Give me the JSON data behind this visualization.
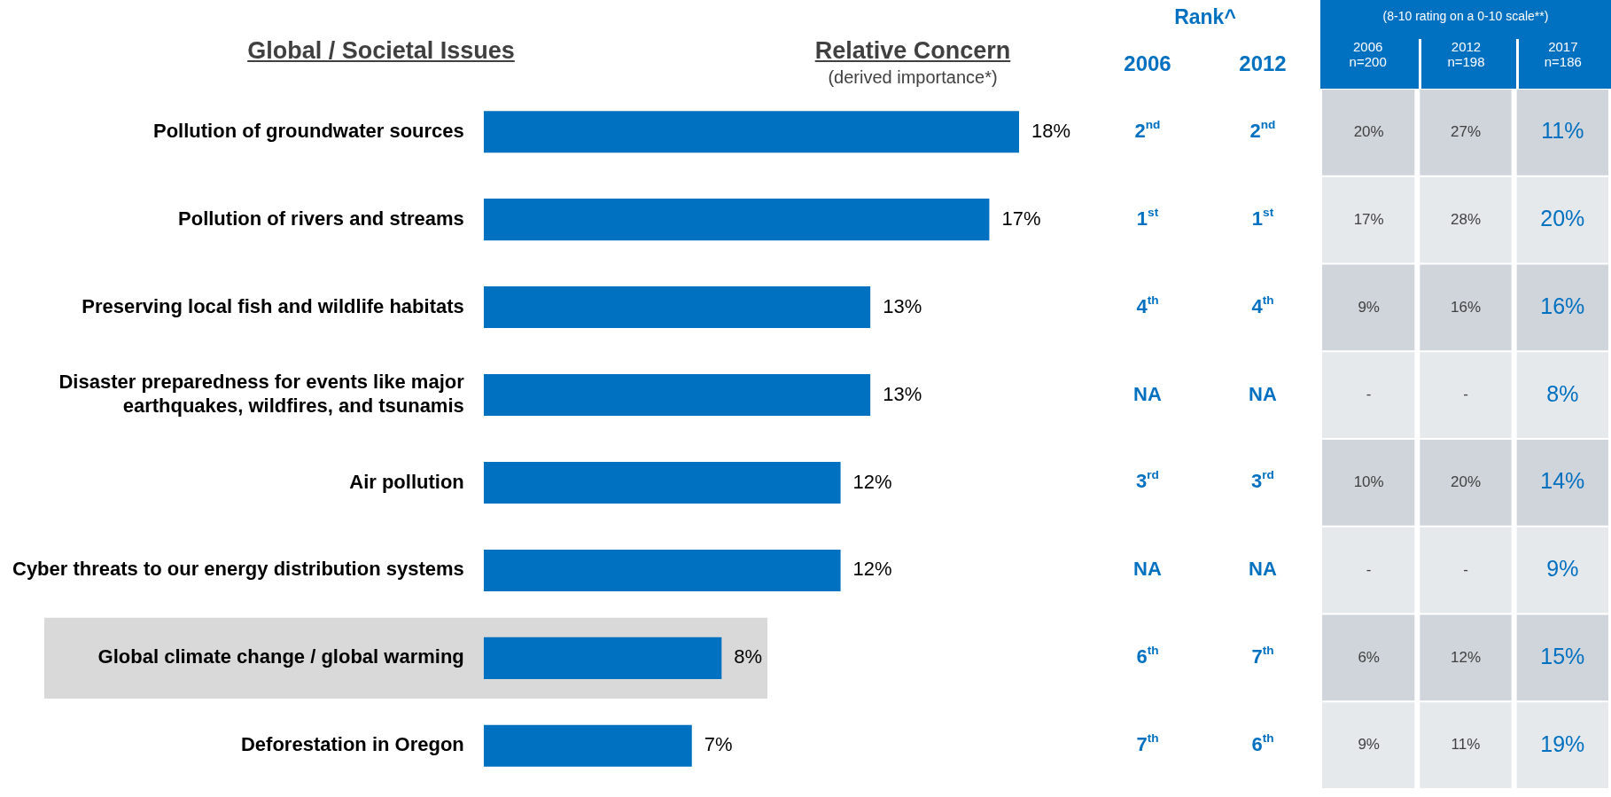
{
  "chart_data": [
    {
      "type": "bar",
      "orientation": "horizontal",
      "title": "Relative Concern",
      "subtitle": "(derived importance*)",
      "ylabel": "Global / Societal Issues",
      "categories": [
        "Pollution of groundwater sources",
        "Pollution of rivers and streams",
        "Preserving local fish and wildlife habitats",
        "Disaster preparedness for events like major earthquakes, wildfires, and tsunamis",
        "Air pollution",
        "Cyber threats to our energy distribution systems",
        "Global climate change / global warming",
        "Deforestation in Oregon"
      ],
      "values": [
        18,
        17,
        13,
        13,
        12,
        12,
        8,
        7
      ],
      "color": "#0070c0",
      "value_labels": [
        "18%",
        "17%",
        "13%",
        "13%",
        "12%",
        "12%",
        "8%",
        "7%"
      ],
      "tick_labels": "y",
      "legend": false,
      "bands": [
        {
          "axis": "y",
          "from": "Global climate change / global warming",
          "to": "Global climate change / global warming",
          "color": "#d9d9d9"
        }
      ]
    },
    {
      "type": "other",
      "title": "Rank^",
      "categories": [
        "2006",
        "2012"
      ],
      "cell_labels": [
        [
          "2$^{nd}$",
          "2$^{nd}$"
        ],
        [
          "1$^{st}$",
          "1$^{st}$"
        ],
        [
          "4$^{th}$",
          "4$^{th}$"
        ],
        [
          "NA",
          "NA"
        ],
        [
          "3$^{rd}$",
          "3$^{rd}$"
        ],
        [
          "NA",
          "NA"
        ],
        [
          "6$^{th}$",
          "7$^{th}$"
        ],
        [
          "7$^{th}$",
          "6$^{th}$"
        ]
      ]
    },
    {
      "type": "other",
      "title": "(8-10 rating on a 0-10 scale**)",
      "categories": [
        "2006\nn=200",
        "2012\nn=198",
        "2017\nn=186"
      ],
      "cell_labels": [
        [
          "20%",
          "27%",
          "11%"
        ],
        [
          "17%",
          "28%",
          "20%"
        ],
        [
          "9%",
          "16%",
          "16%"
        ],
        [
          "-",
          "-",
          "8%"
        ],
        [
          "10%",
          "20%",
          "14%"
        ],
        [
          "-",
          "-",
          "9%"
        ],
        [
          "6%",
          "12%",
          "15%"
        ],
        [
          "9%",
          "11%",
          "19%"
        ]
      ]
    }
  ]
}
